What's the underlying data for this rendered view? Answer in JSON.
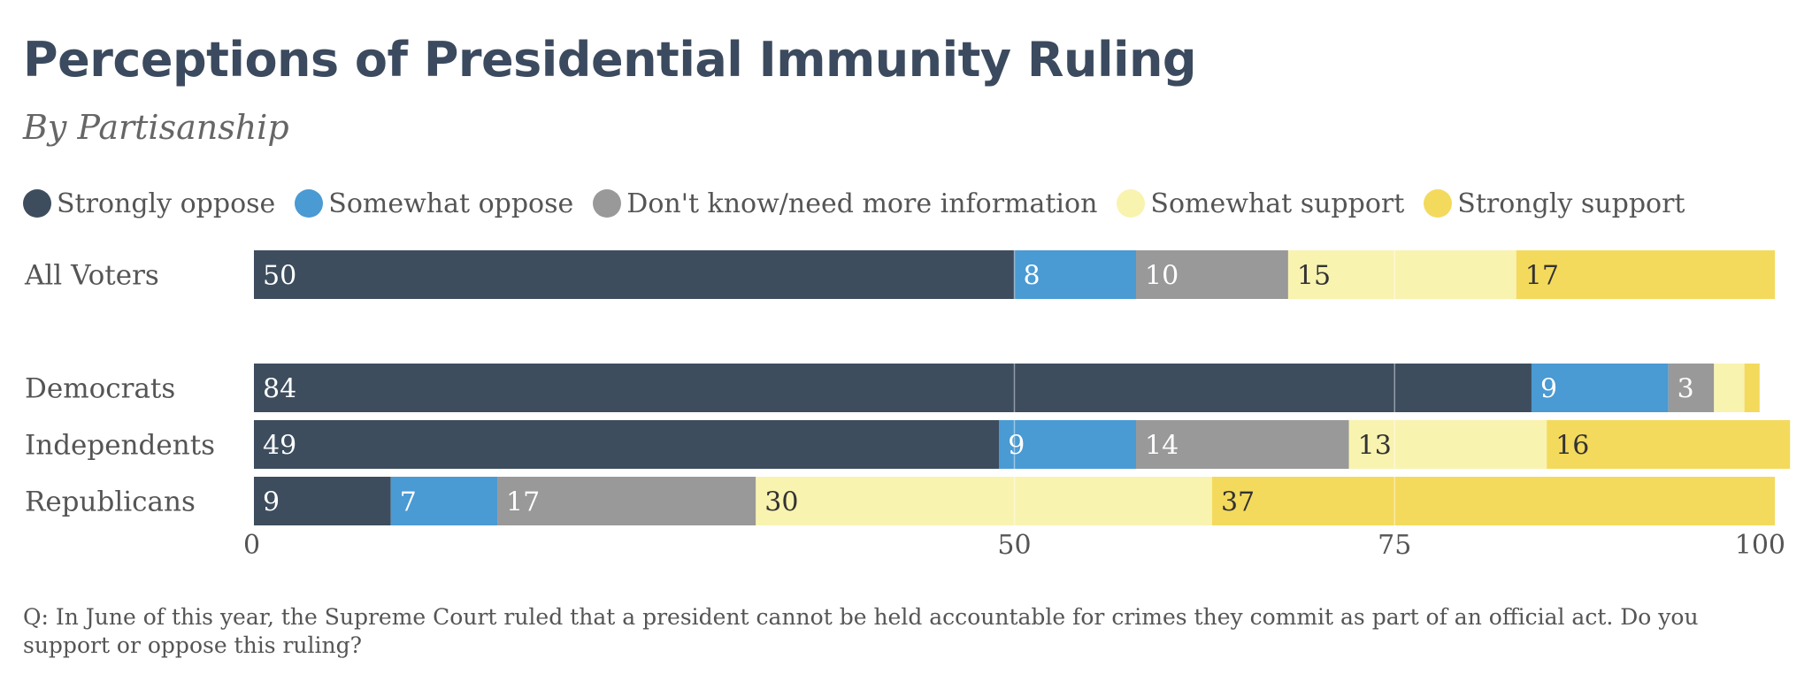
{
  "chart_data": {
    "type": "bar",
    "orientation": "horizontal",
    "stacked": true,
    "title": "Perceptions of Presidential Immunity Ruling",
    "subtitle": "By Partisanship",
    "categories": [
      "All Voters",
      "Democrats",
      "Independents",
      "Republicans"
    ],
    "series": [
      {
        "name": "Strongly oppose",
        "color": "#3d4d5e",
        "label_color": "#ffffff",
        "values": [
          50,
          84,
          49,
          9
        ]
      },
      {
        "name": "Somewhat oppose",
        "color": "#4a9ad3",
        "label_color": "#ffffff",
        "values": [
          8,
          9,
          9,
          7
        ]
      },
      {
        "name": "Don't know/need more information",
        "color": "#999999",
        "label_color": "#ffffff",
        "values": [
          10,
          3,
          14,
          17
        ]
      },
      {
        "name": "Somewhat support",
        "color": "#f9f3b0",
        "label_color": "#333333",
        "values": [
          15,
          2,
          13,
          30
        ]
      },
      {
        "name": "Strongly support",
        "color": "#f4da5c",
        "label_color": "#333333",
        "values": [
          17,
          1,
          16,
          37
        ]
      }
    ],
    "value_labels_hidden_below": 3,
    "xlim": [
      0,
      100
    ],
    "xticks": [
      0,
      50,
      75,
      100
    ],
    "grid_lines": [
      50,
      75
    ],
    "legend_position": "top",
    "footnote": "Q: In June of this year, the Supreme Court ruled that a president cannot be held accountable for crimes they commit as part of an official act. Do you support or oppose this ruling?"
  }
}
